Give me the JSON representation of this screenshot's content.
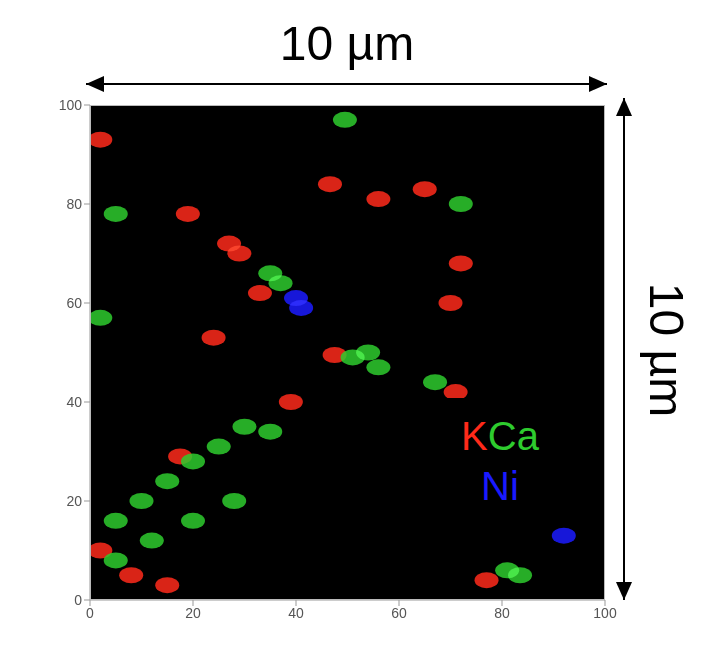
{
  "chart_data": {
    "type": "scatter",
    "annotations": [
      "10 µm",
      "10 µm"
    ],
    "xlim": [
      0,
      100
    ],
    "ylim": [
      0,
      100
    ],
    "xticks": [
      0,
      20,
      40,
      60,
      80,
      100
    ],
    "yticks": [
      0,
      20,
      40,
      60,
      80,
      100
    ],
    "grid": false,
    "legend": "lower right",
    "series": [
      {
        "name": "K",
        "color": "#ff2a1a",
        "x": [
          29,
          27,
          46.6,
          47.5,
          71,
          72,
          56,
          2,
          19,
          39,
          2,
          8,
          15,
          17.5,
          77,
          70,
          33,
          24,
          65
        ],
        "y": [
          70,
          72,
          84,
          49.5,
          42,
          68,
          81,
          93,
          78,
          40,
          10,
          5,
          3,
          29,
          4,
          60,
          62,
          53,
          83
        ]
      },
      {
        "name": "Ca",
        "color": "#2ecc2e",
        "x": [
          49.5,
          37,
          35,
          54,
          51,
          67,
          72,
          5,
          2,
          5,
          10,
          15,
          20,
          25,
          30,
          5,
          12,
          20,
          28,
          35,
          83.5,
          81,
          56
        ],
        "y": [
          97,
          64,
          66,
          50,
          49,
          44,
          80,
          78,
          57,
          16,
          20,
          24,
          28,
          31,
          35,
          8,
          12,
          16,
          20,
          34,
          5,
          6,
          47
        ]
      },
      {
        "name": "Ni",
        "color": "#1a1aff",
        "x": [
          41,
          40,
          92
        ],
        "y": [
          59,
          61,
          13
        ]
      }
    ]
  }
}
